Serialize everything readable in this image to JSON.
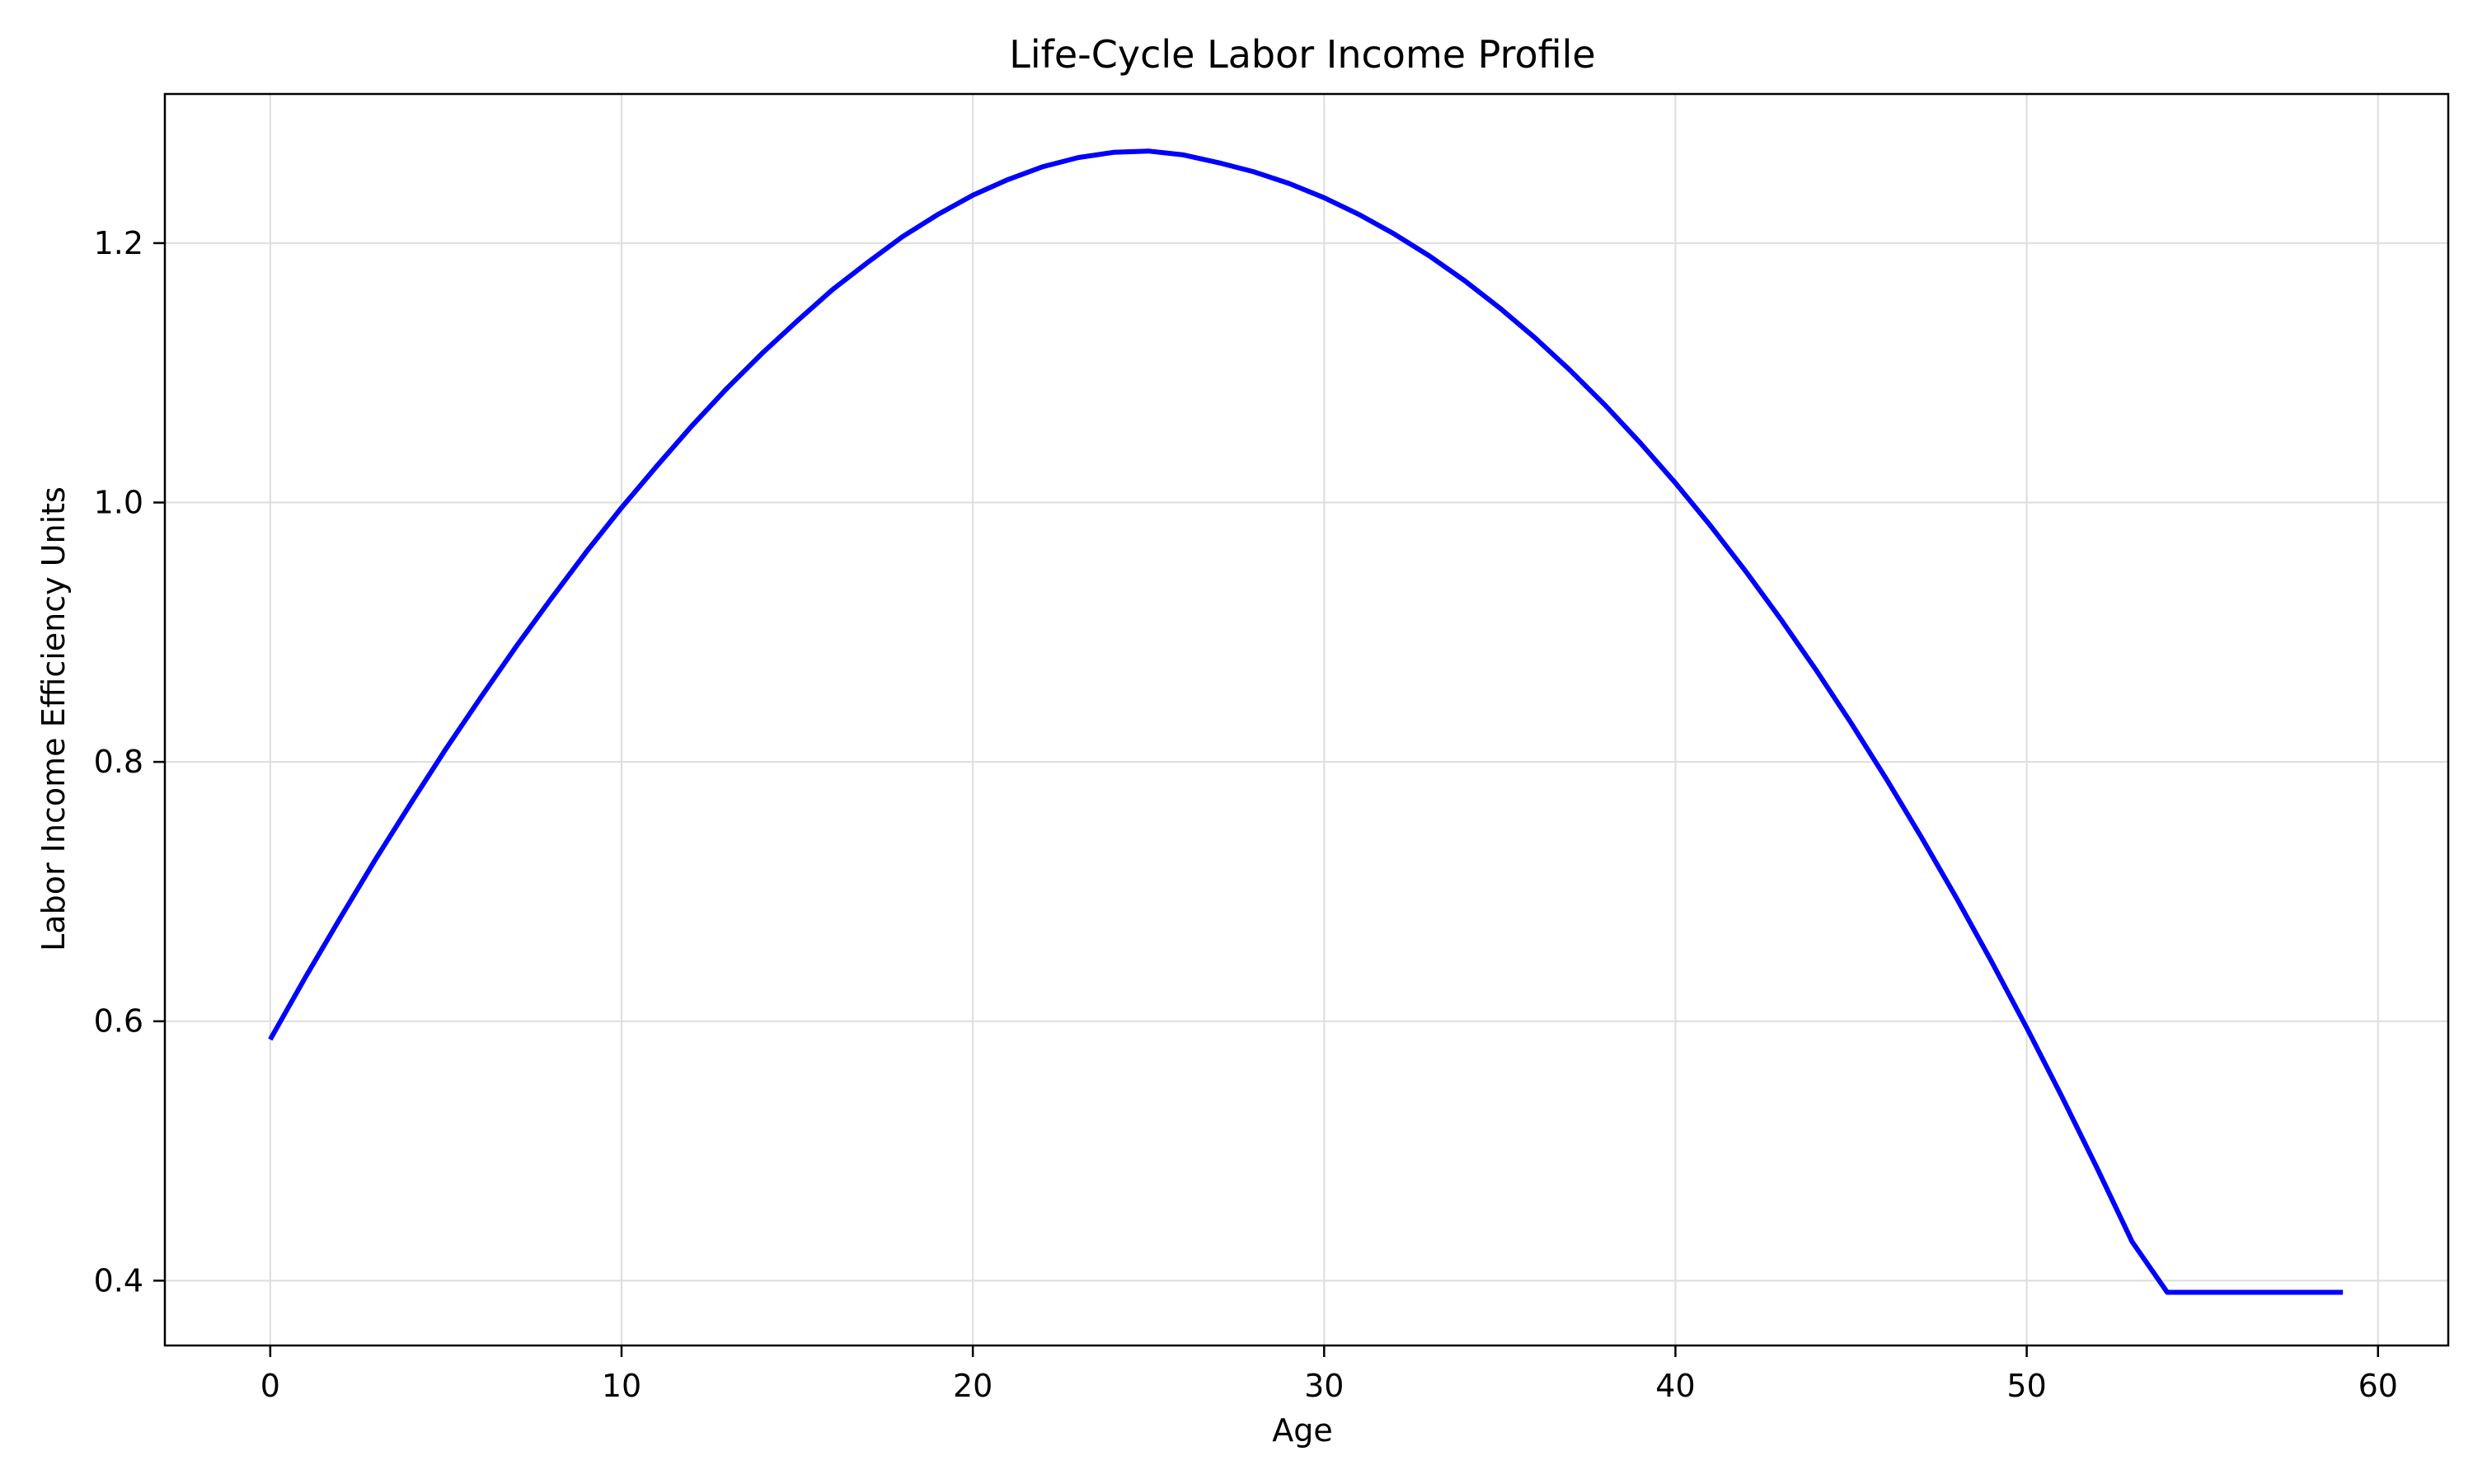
{
  "chart_data": {
    "type": "line",
    "title": "Life-Cycle Labor Income Profile",
    "xlabel": "Age",
    "ylabel": "Labor Income Efficiency Units",
    "xlim": [
      -3,
      62
    ],
    "ylim": [
      0.35,
      1.315
    ],
    "grid": true,
    "xticks": [
      0,
      10,
      20,
      30,
      40,
      50,
      60
    ],
    "xtick_labels": [
      "0",
      "10",
      "20",
      "30",
      "40",
      "50",
      "60"
    ],
    "yticks": [
      0.4,
      0.6,
      0.8,
      1.0,
      1.2
    ],
    "ytick_labels": [
      "0.4",
      "0.6",
      "0.8",
      "1.0",
      "1.2"
    ],
    "series": [
      {
        "color": "#0000ff",
        "x": [
          0,
          1,
          2,
          3,
          4,
          5,
          6,
          7,
          8,
          9,
          10,
          11,
          12,
          13,
          14,
          15,
          16,
          17,
          18,
          19,
          20,
          21,
          22,
          23,
          24,
          25,
          26,
          27,
          28,
          29,
          30,
          31,
          32,
          33,
          34,
          35,
          36,
          37,
          38,
          39,
          40,
          41,
          42,
          43,
          44,
          45,
          46,
          47,
          48,
          49,
          50,
          51,
          52,
          53,
          54,
          55,
          56,
          57,
          58,
          59
        ],
        "values": [
          0.586,
          0.634,
          0.68,
          0.725,
          0.768,
          0.81,
          0.85,
          0.889,
          0.926,
          0.962,
          0.996,
          1.028,
          1.059,
          1.088,
          1.115,
          1.14,
          1.164,
          1.185,
          1.205,
          1.222,
          1.237,
          1.249,
          1.259,
          1.266,
          1.27,
          1.271,
          1.268,
          1.262,
          1.255,
          1.246,
          1.235,
          1.222,
          1.207,
          1.19,
          1.171,
          1.15,
          1.127,
          1.102,
          1.075,
          1.046,
          1.015,
          0.982,
          0.947,
          0.91,
          0.871,
          0.83,
          0.787,
          0.742,
          0.695,
          0.646,
          0.595,
          0.542,
          0.487,
          0.43,
          0.391,
          0.391,
          0.391,
          0.391,
          0.391,
          0.391
        ]
      }
    ]
  }
}
